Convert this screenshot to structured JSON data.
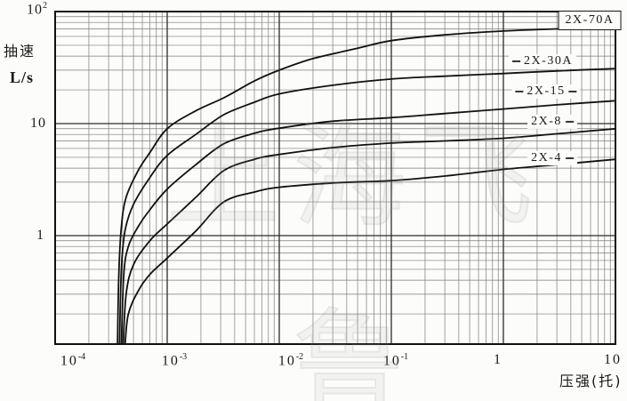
{
  "figure": {
    "background": "#fcfcfa",
    "watermark_text": "上海飞鲁"
  },
  "chart_data": {
    "type": "line",
    "title": "",
    "xlabel": "压强(托)",
    "ylabel_line1": "抽速",
    "ylabel_line2": "L/s",
    "x_axis": {
      "scale": "log",
      "min": 0.0001,
      "max": 10,
      "ticks": [
        {
          "b": "10",
          "e": "-4"
        },
        {
          "b": "10",
          "e": "-3"
        },
        {
          "b": "10",
          "e": "-2"
        },
        {
          "b": "10",
          "e": "-1"
        },
        {
          "b": "1",
          "e": ""
        },
        {
          "b": "10",
          "e": ""
        }
      ]
    },
    "y_axis": {
      "scale": "log",
      "min": 0.107,
      "max": 100,
      "ticks": [
        {
          "b": "10",
          "e": "2"
        },
        {
          "b": "10",
          "e": ""
        },
        {
          "b": "1",
          "e": ""
        }
      ]
    },
    "grid": "log-log, major decade lines + minor 2-9 lines, both axes",
    "legend_position": "labels-on-curves-right",
    "series": [
      {
        "name": "2X-70A",
        "points": [
          [
            0.00036,
            0.105
          ],
          [
            0.00037,
            0.45
          ],
          [
            0.00039,
            1.2
          ],
          [
            0.00043,
            2.2
          ],
          [
            0.00055,
            3.8
          ],
          [
            0.0007,
            5.5
          ],
          [
            0.001,
            9
          ],
          [
            0.0018,
            13
          ],
          [
            0.0032,
            17
          ],
          [
            0.006,
            24
          ],
          [
            0.01,
            30
          ],
          [
            0.02,
            38
          ],
          [
            0.05,
            47
          ],
          [
            0.1,
            55
          ],
          [
            0.3,
            62
          ],
          [
            1,
            67
          ],
          [
            3,
            70
          ],
          [
            10,
            72
          ]
        ]
      },
      {
        "name": "2X-30A",
        "points": [
          [
            0.000375,
            0.105
          ],
          [
            0.00039,
            0.5
          ],
          [
            0.00042,
            1.1
          ],
          [
            0.0005,
            1.9
          ],
          [
            0.0007,
            3.3
          ],
          [
            0.001,
            5.2
          ],
          [
            0.0018,
            8
          ],
          [
            0.0032,
            12
          ],
          [
            0.006,
            15.5
          ],
          [
            0.01,
            18.4
          ],
          [
            0.03,
            22
          ],
          [
            0.1,
            25
          ],
          [
            0.3,
            26.5
          ],
          [
            1,
            28
          ],
          [
            3,
            29.5
          ],
          [
            10,
            31
          ]
        ]
      },
      {
        "name": "2X-15",
        "points": [
          [
            0.00039,
            0.105
          ],
          [
            0.00041,
            0.45
          ],
          [
            0.00045,
            0.8
          ],
          [
            0.00055,
            1.2
          ],
          [
            0.0007,
            1.7
          ],
          [
            0.001,
            2.6
          ],
          [
            0.0018,
            4.3
          ],
          [
            0.0032,
            6.6
          ],
          [
            0.006,
            8.2
          ],
          [
            0.01,
            9.1
          ],
          [
            0.03,
            10.5
          ],
          [
            0.1,
            11.3
          ],
          [
            0.3,
            12.3
          ],
          [
            1,
            13.5
          ],
          [
            3,
            14.7
          ],
          [
            10,
            16
          ]
        ]
      },
      {
        "name": "2X-8",
        "points": [
          [
            0.000405,
            0.105
          ],
          [
            0.00043,
            0.3
          ],
          [
            0.0005,
            0.55
          ],
          [
            0.0007,
            0.9
          ],
          [
            0.001,
            1.27
          ],
          [
            0.0018,
            2.2
          ],
          [
            0.0032,
            3.8
          ],
          [
            0.006,
            4.8
          ],
          [
            0.01,
            5.3
          ],
          [
            0.03,
            6.1
          ],
          [
            0.1,
            6.7
          ],
          [
            0.3,
            7.0
          ],
          [
            1,
            7.4
          ],
          [
            3,
            8.1
          ],
          [
            10,
            9
          ]
        ]
      },
      {
        "name": "2X-4",
        "points": [
          [
            0.00042,
            0.105
          ],
          [
            0.00045,
            0.2
          ],
          [
            0.00055,
            0.32
          ],
          [
            0.0007,
            0.45
          ],
          [
            0.001,
            0.63
          ],
          [
            0.0018,
            1.1
          ],
          [
            0.0032,
            2.0
          ],
          [
            0.006,
            2.45
          ],
          [
            0.01,
            2.7
          ],
          [
            0.03,
            2.95
          ],
          [
            0.1,
            3.1
          ],
          [
            0.3,
            3.4
          ],
          [
            1,
            3.9
          ],
          [
            3,
            4.3
          ],
          [
            10,
            4.8
          ]
        ]
      }
    ],
    "colors": {
      "curve": "#111111",
      "grid_minor": "#7d7d7d",
      "grid_major": "#2b2b2b",
      "border": "#111111"
    }
  }
}
